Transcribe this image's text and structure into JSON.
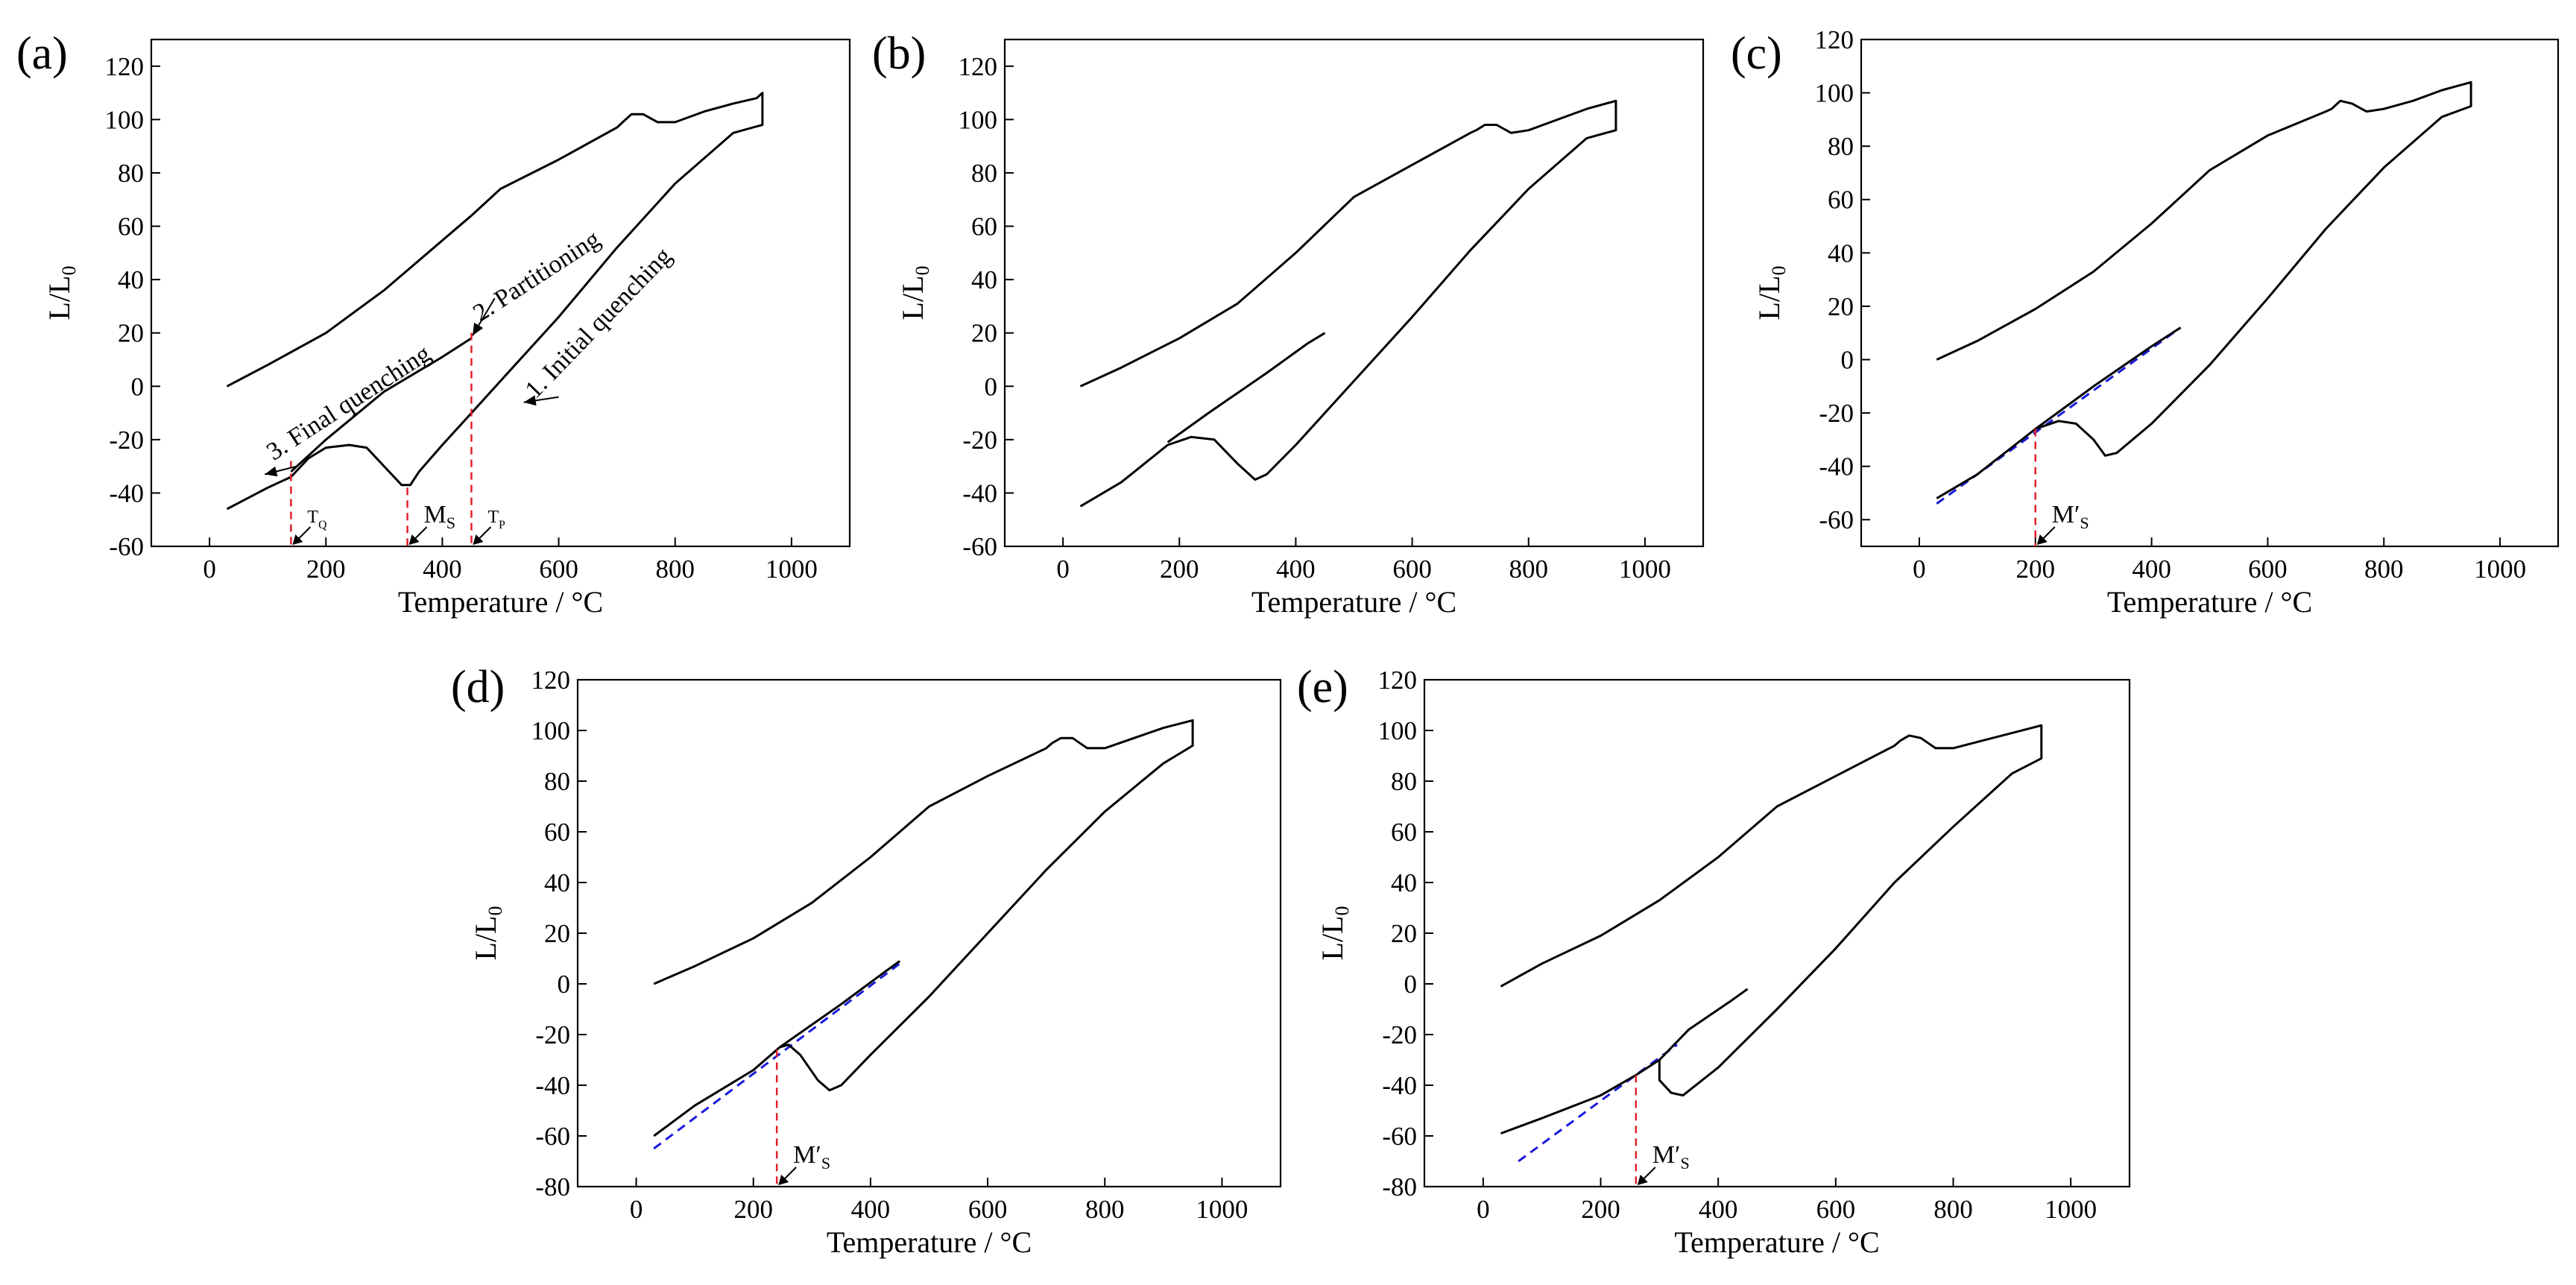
{
  "chart_data": [
    {
      "panel": "(a)",
      "type": "line",
      "xlabel": "Temperature / °C",
      "ylabel": "L/L",
      "ylabel_sub": "0",
      "xlim": [
        -100,
        1100
      ],
      "ylim": [
        -60,
        130
      ],
      "xticks": [
        0,
        200,
        400,
        600,
        800,
        1000
      ],
      "yticks": [
        -60,
        -40,
        -20,
        0,
        20,
        40,
        60,
        80,
        100,
        120
      ],
      "series": [
        {
          "values": [
            [
              30,
              -46
            ],
            [
              100,
              -38
            ],
            [
              140,
              -34
            ],
            [
              170,
              -27
            ],
            [
              200,
              -23
            ],
            [
              240,
              -22
            ],
            [
              270,
              -23
            ],
            [
              300,
              -30
            ],
            [
              330,
              -37
            ],
            [
              345,
              -37
            ],
            [
              360,
              -32
            ],
            [
              400,
              -22
            ],
            [
              450,
              -10
            ],
            [
              500,
              2
            ],
            [
              600,
              26
            ],
            [
              700,
              52
            ],
            [
              800,
              76
            ],
            [
              900,
              95
            ],
            [
              950,
              98
            ],
            [
              950,
              110
            ],
            [
              940,
              108
            ],
            [
              900,
              106
            ],
            [
              850,
              103
            ],
            [
              800,
              99
            ],
            [
              770,
              99
            ],
            [
              745,
              102
            ],
            [
              725,
              102
            ],
            [
              710,
              99
            ],
            [
              700,
              97
            ],
            [
              600,
              85
            ],
            [
              500,
              74
            ],
            [
              450,
              64
            ],
            [
              300,
              36
            ],
            [
              200,
              20
            ],
            [
              100,
              8
            ],
            [
              30,
              0
            ]
          ]
        },
        {
          "values": [
            [
              140,
              -32
            ],
            [
              200,
              -20
            ],
            [
              300,
              -2
            ],
            [
              400,
              11
            ],
            [
              450,
              18
            ]
          ]
        }
      ],
      "reference_lines": [
        {
          "x": 140,
          "label": "T",
          "label_sub": "Q"
        },
        {
          "x": 340,
          "label": "M",
          "label_sub": "S"
        },
        {
          "x": 450,
          "label": "T",
          "label_sub": "P"
        }
      ],
      "annotations": [
        "1. Initial quenching",
        "2. Partitioning",
        "3. Final quenching"
      ]
    },
    {
      "panel": "(b)",
      "type": "line",
      "xlabel": "Temperature / °C",
      "ylabel": "L/L",
      "ylabel_sub": "0",
      "xlim": [
        -100,
        1100
      ],
      "ylim": [
        -60,
        130
      ],
      "xticks": [
        0,
        200,
        400,
        600,
        800,
        1000
      ],
      "yticks": [
        -60,
        -40,
        -20,
        0,
        20,
        40,
        60,
        80,
        100,
        120
      ],
      "series": [
        {
          "values": [
            [
              30,
              -45
            ],
            [
              100,
              -36
            ],
            [
              180,
              -22
            ],
            [
              220,
              -19
            ],
            [
              260,
              -20
            ],
            [
              300,
              -29
            ],
            [
              330,
              -35
            ],
            [
              350,
              -33
            ],
            [
              400,
              -22
            ],
            [
              500,
              2
            ],
            [
              600,
              26
            ],
            [
              700,
              51
            ],
            [
              800,
              74
            ],
            [
              900,
              93
            ],
            [
              950,
              96
            ],
            [
              950,
              107
            ],
            [
              900,
              104
            ],
            [
              850,
              100
            ],
            [
              800,
              96
            ],
            [
              770,
              95
            ],
            [
              745,
              98
            ],
            [
              725,
              98
            ],
            [
              710,
              96
            ],
            [
              700,
              95
            ],
            [
              600,
              83
            ],
            [
              500,
              71
            ],
            [
              400,
              50
            ],
            [
              300,
              31
            ],
            [
              200,
              18
            ],
            [
              100,
              7
            ],
            [
              30,
              0
            ]
          ]
        },
        {
          "values": [
            [
              180,
              -21
            ],
            [
              250,
              -10
            ],
            [
              350,
              5
            ],
            [
              420,
              16
            ],
            [
              450,
              20
            ]
          ]
        }
      ]
    },
    {
      "panel": "(c)",
      "type": "line",
      "xlabel": "Temperature / °C",
      "ylabel": "L/L",
      "ylabel_sub": "0",
      "xlim": [
        -100,
        1100
      ],
      "ylim": [
        -70,
        120
      ],
      "xticks": [
        0,
        200,
        400,
        600,
        800,
        1000
      ],
      "yticks": [
        -60,
        -40,
        -20,
        0,
        20,
        40,
        60,
        80,
        100,
        120
      ],
      "series": [
        {
          "values": [
            [
              30,
              -52
            ],
            [
              100,
              -43
            ],
            [
              200,
              -26
            ],
            [
              240,
              -23
            ],
            [
              270,
              -24
            ],
            [
              300,
              -30
            ],
            [
              320,
              -36
            ],
            [
              340,
              -35
            ],
            [
              400,
              -24
            ],
            [
              500,
              -2
            ],
            [
              600,
              23
            ],
            [
              700,
              49
            ],
            [
              800,
              72
            ],
            [
              900,
              91
            ],
            [
              950,
              95
            ],
            [
              950,
              104
            ],
            [
              900,
              101
            ],
            [
              850,
              97
            ],
            [
              800,
              94
            ],
            [
              770,
              93
            ],
            [
              745,
              96
            ],
            [
              725,
              97
            ],
            [
              710,
              94
            ],
            [
              700,
              93
            ],
            [
              600,
              84
            ],
            [
              500,
              71
            ],
            [
              400,
              51
            ],
            [
              300,
              33
            ],
            [
              200,
              19
            ],
            [
              100,
              7
            ],
            [
              30,
              0
            ]
          ]
        },
        {
          "values": [
            [
              200,
              -26
            ],
            [
              300,
              -10
            ],
            [
              400,
              5
            ],
            [
              450,
              12
            ]
          ]
        }
      ],
      "tangent": [
        [
          30,
          -54
        ],
        [
          450,
          12
        ]
      ],
      "reference_lines": [
        {
          "x": 200,
          "label": "M′",
          "label_sub": "S"
        }
      ]
    },
    {
      "panel": "(d)",
      "type": "line",
      "xlabel": "Temperature / °C",
      "ylabel": "L/L",
      "ylabel_sub": "0",
      "xlim": [
        -100,
        1100
      ],
      "ylim": [
        -80,
        120
      ],
      "xticks": [
        0,
        200,
        400,
        600,
        800,
        1000
      ],
      "yticks": [
        -80,
        -60,
        -40,
        -20,
        0,
        20,
        40,
        60,
        80,
        100,
        120
      ],
      "series": [
        {
          "values": [
            [
              30,
              -60
            ],
            [
              100,
              -48
            ],
            [
              200,
              -34
            ],
            [
              245,
              -25
            ],
            [
              260,
              -24
            ],
            [
              280,
              -28
            ],
            [
              310,
              -38
            ],
            [
              330,
              -42
            ],
            [
              350,
              -40
            ],
            [
              400,
              -28
            ],
            [
              500,
              -5
            ],
            [
              600,
              20
            ],
            [
              700,
              45
            ],
            [
              800,
              68
            ],
            [
              900,
              87
            ],
            [
              950,
              94
            ],
            [
              950,
              104
            ],
            [
              900,
              101
            ],
            [
              850,
              97
            ],
            [
              800,
              93
            ],
            [
              770,
              93
            ],
            [
              745,
              97
            ],
            [
              725,
              97
            ],
            [
              710,
              95
            ],
            [
              700,
              93
            ],
            [
              600,
              82
            ],
            [
              500,
              70
            ],
            [
              400,
              50
            ],
            [
              300,
              32
            ],
            [
              200,
              18
            ],
            [
              100,
              7
            ],
            [
              30,
              0
            ]
          ]
        },
        {
          "values": [
            [
              245,
              -25
            ],
            [
              350,
              -8
            ],
            [
              420,
              4
            ],
            [
              450,
              9
            ]
          ]
        }
      ],
      "tangent": [
        [
          30,
          -65
        ],
        [
          450,
          8
        ]
      ],
      "reference_lines": [
        {
          "x": 240,
          "label": "M′",
          "label_sub": "S"
        }
      ]
    },
    {
      "panel": "(e)",
      "type": "line",
      "xlabel": "Temperature / °C",
      "ylabel": "L/L",
      "ylabel_sub": "0",
      "xlim": [
        -100,
        1100
      ],
      "ylim": [
        -80,
        120
      ],
      "xticks": [
        0,
        200,
        400,
        600,
        800,
        1000
      ],
      "yticks": [
        -80,
        -60,
        -40,
        -20,
        0,
        20,
        40,
        60,
        80,
        100,
        120
      ],
      "series": [
        {
          "values": [
            [
              30,
              -59
            ],
            [
              100,
              -53
            ],
            [
              200,
              -44
            ],
            [
              260,
              -36
            ],
            [
              300,
              -30
            ],
            [
              300,
              -38
            ],
            [
              320,
              -43
            ],
            [
              340,
              -44
            ],
            [
              400,
              -33
            ],
            [
              500,
              -10
            ],
            [
              600,
              14
            ],
            [
              700,
              40
            ],
            [
              800,
              62
            ],
            [
              900,
              83
            ],
            [
              950,
              89
            ],
            [
              950,
              102
            ],
            [
              900,
              99
            ],
            [
              850,
              96
            ],
            [
              800,
              93
            ],
            [
              770,
              93
            ],
            [
              745,
              97
            ],
            [
              725,
              98
            ],
            [
              710,
              96
            ],
            [
              700,
              94
            ],
            [
              600,
              82
            ],
            [
              500,
              70
            ],
            [
              400,
              50
            ],
            [
              300,
              33
            ],
            [
              200,
              19
            ],
            [
              100,
              8
            ],
            [
              30,
              -1
            ]
          ]
        },
        {
          "values": [
            [
              300,
              -30
            ],
            [
              350,
              -18
            ],
            [
              420,
              -7
            ],
            [
              450,
              -2
            ]
          ]
        }
      ],
      "tangent": [
        [
          60,
          -70
        ],
        [
          330,
          -24
        ]
      ],
      "reference_lines": [
        {
          "x": 260,
          "label": "M′",
          "label_sub": "S"
        }
      ]
    }
  ]
}
